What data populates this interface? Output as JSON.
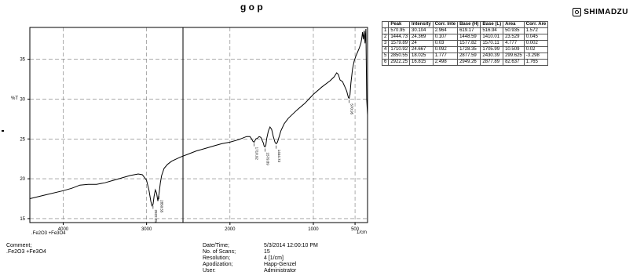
{
  "header": {
    "title_partial": "g    o    p",
    "brand": "SHIMADZU"
  },
  "peak_table": {
    "columns": [
      "",
      "Peak",
      "Intensity",
      "Corr. Inte",
      "Base (H)",
      "Base (L)",
      "Area",
      "Corr. Are"
    ],
    "rows": [
      [
        "1",
        "570.95",
        "30.104",
        "2.964",
        "619.17",
        "516.94",
        "50.935",
        "1.572"
      ],
      [
        "2",
        "1444.73",
        "24.369",
        "0.107",
        "1448.59",
        "1410.01",
        "23.529",
        "0.045"
      ],
      [
        "3",
        "1579.89",
        "24",
        "0.03",
        "1577.82",
        "1570.11",
        "4.777",
        "0.002"
      ],
      [
        "4",
        "1710.92",
        "24.667",
        "0.092",
        "1728.35",
        "1705.99",
        "10.509",
        "0.02"
      ],
      [
        "5",
        "2850.55",
        "18.025",
        "1.777",
        "2877.59",
        "2430.39",
        "299.625",
        "-3.298"
      ],
      [
        "6",
        "2922.25",
        "16.815",
        "2.498",
        "2949.26",
        "2877.89",
        "82.637",
        "1.765"
      ]
    ]
  },
  "chart_data": {
    "type": "line",
    "xlabel": "1/cm",
    "ylabel": "%T",
    "sample_label": ".Fe2O3 +Fe3O4",
    "xlim": [
      4400,
      350
    ],
    "ylim": [
      14.5,
      39
    ],
    "x_ticks": [
      4000,
      3000,
      2000,
      1000,
      500
    ],
    "y_ticks": [
      15,
      20,
      25,
      30,
      35
    ],
    "grid": true,
    "series": [
      {
        "x": [
          4400,
          4200,
          4000,
          3900,
          3850,
          3800,
          3700,
          3600,
          3500,
          3400,
          3300,
          3200,
          3100,
          3050,
          3000,
          2970,
          2950,
          2935,
          2922,
          2910,
          2895,
          2880,
          2865,
          2850,
          2835,
          2820,
          2790,
          2750,
          2700,
          2600,
          2500,
          2400,
          2300,
          2200,
          2100,
          2000,
          1900,
          1850,
          1800,
          1760,
          1740,
          1725,
          1711,
          1700,
          1690,
          1670,
          1650,
          1630,
          1600,
          1590,
          1580,
          1570,
          1560,
          1540,
          1520,
          1500,
          1480,
          1460,
          1445,
          1430,
          1410,
          1390,
          1350,
          1300,
          1200,
          1100,
          1000,
          900,
          800,
          750,
          720,
          700,
          680,
          650,
          620,
          600,
          590,
          580,
          571,
          560,
          550,
          530,
          510,
          490,
          470,
          450,
          430,
          420,
          410,
          400,
          390,
          380,
          370,
          360,
          350
        ],
        "y": [
          17.5,
          18.0,
          18.5,
          18.8,
          19.0,
          19.2,
          19.3,
          19.3,
          19.5,
          19.8,
          20.1,
          20.4,
          20.6,
          20.5,
          19.8,
          18.5,
          17.2,
          16.6,
          16.8,
          17.8,
          18.6,
          18.2,
          17.2,
          18.2,
          19.5,
          20.4,
          21.3,
          21.8,
          22.2,
          22.7,
          23.1,
          23.5,
          23.8,
          24.1,
          24.4,
          24.6,
          24.9,
          25.1,
          25.3,
          25.3,
          25.0,
          24.7,
          24.6,
          24.8,
          25.0,
          25.1,
          25.3,
          25.2,
          24.5,
          24.1,
          24.0,
          24.2,
          25.0,
          26.0,
          26.5,
          26.2,
          25.3,
          24.6,
          24.4,
          24.6,
          25.3,
          26.0,
          26.9,
          27.6,
          28.6,
          29.5,
          30.6,
          31.5,
          32.3,
          32.8,
          33.3,
          33.1,
          32.4,
          32.2,
          31.5,
          31.0,
          30.6,
          30.2,
          30.1,
          30.6,
          32.0,
          33.8,
          34.8,
          35.4,
          35.9,
          36.4,
          37.0,
          37.6,
          38.4,
          37.5,
          38.6,
          37.0,
          38.8,
          30.0,
          28.0
        ]
      }
    ],
    "peak_labels": [
      {
        "x": 2922.25,
        "y": 16.815,
        "text": "2922.25"
      },
      {
        "x": 2850.55,
        "y": 18.025,
        "text": "2850.55"
      },
      {
        "x": 1710.92,
        "y": 24.667,
        "text": "1710.92"
      },
      {
        "x": 1579.89,
        "y": 24.0,
        "text": "1579.89"
      },
      {
        "x": 1444.73,
        "y": 24.369,
        "text": "1444.73"
      },
      {
        "x": 570.95,
        "y": 30.104,
        "text": "570.95"
      }
    ]
  },
  "footer": {
    "comment_label": "Comment;",
    "comment_value": ".Fe2O3 +Fe3O4",
    "info": [
      {
        "label": "Date/Time;",
        "value": "5/3/2014 12:00:10 PM"
      },
      {
        "label": "No. of Scans;",
        "value": "15"
      },
      {
        "label": "Resolution;",
        "value": "4 [1/cm]"
      },
      {
        "label": "Apodization;",
        "value": "Happ-Genzel"
      },
      {
        "label": "User:",
        "value": "Administrator"
      }
    ]
  }
}
